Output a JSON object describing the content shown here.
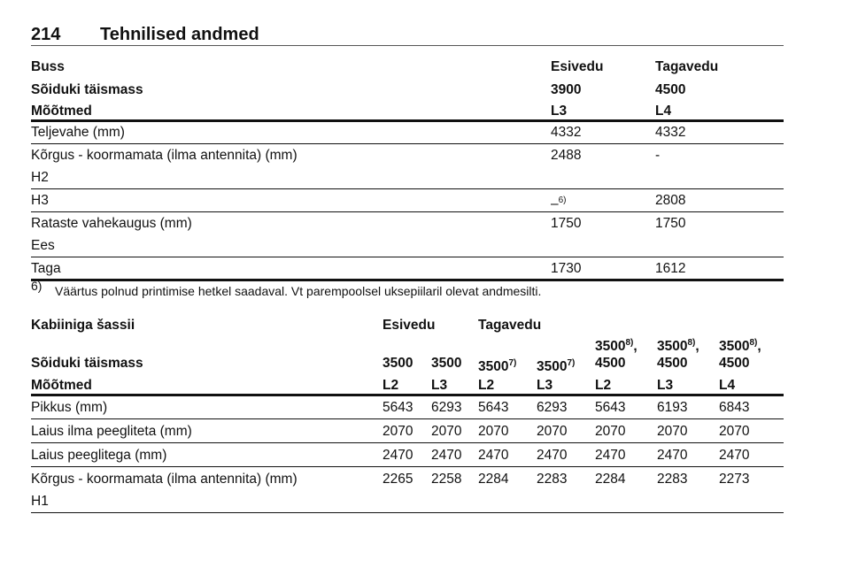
{
  "header": {
    "page_number": "214",
    "title": "Tehnilised andmed"
  },
  "table1": {
    "head": [
      [
        "Buss",
        "Esivedu",
        "Tagavedu"
      ],
      [
        "Sõiduki täismass",
        "3900",
        "4500"
      ],
      [
        "Mõõtmed",
        "L3",
        "L4"
      ]
    ],
    "rows": [
      [
        "Teljevahe (mm)",
        "4332",
        "4332"
      ],
      [
        [
          "Kõrgus - koormamata (ilma antennita) (mm)",
          "H2"
        ],
        "2488",
        "-"
      ],
      [
        "H3",
        {
          "text": "–",
          "sup": "6)"
        },
        "2808"
      ],
      [
        [
          "Rataste vahekaugus (mm)",
          "Ees"
        ],
        "1750",
        "1750"
      ],
      [
        "Taga",
        "1730",
        "1612"
      ]
    ]
  },
  "footnote": {
    "mark": "6)",
    "text": "Väärtus polnud printimise hetkel saadaval. Vt parempoolsel uksepiilaril olevat andmesilti."
  },
  "table2": {
    "head": [
      [
        "Kabiiniga šassii",
        "Esivedu",
        null,
        "Tagavedu",
        null,
        null,
        null,
        null
      ],
      [
        "Sõiduki täismass",
        "3500",
        "3500",
        {
          "text": "3500",
          "sup": "7)"
        },
        {
          "text": "3500",
          "sup": "7)"
        },
        [
          {
            "text": "3500",
            "sup": "8)",
            "suffix": ","
          },
          "4500"
        ],
        [
          {
            "text": "3500",
            "sup": "8)",
            "suffix": ","
          },
          "4500"
        ],
        [
          {
            "text": "3500",
            "sup": "8)",
            "suffix": ","
          },
          "4500"
        ]
      ],
      [
        "Mõõtmed",
        "L2",
        "L3",
        "L2",
        "L3",
        "L2",
        "L3",
        "L4"
      ]
    ],
    "rows": [
      [
        "Pikkus (mm)",
        "5643",
        "6293",
        "5643",
        "6293",
        "5643",
        "6193",
        "6843"
      ],
      [
        "Laius ilma peegliteta (mm)",
        "2070",
        "2070",
        "2070",
        "2070",
        "2070",
        "2070",
        "2070"
      ],
      [
        "Laius peeglitega (mm)",
        "2470",
        "2470",
        "2470",
        "2470",
        "2470",
        "2470",
        "2470"
      ],
      [
        [
          "Kõrgus - koormamata (ilma antennita) (mm)",
          "H1"
        ],
        "2265",
        "2258",
        "2284",
        "2283",
        "2284",
        "2283",
        "2273"
      ]
    ]
  }
}
